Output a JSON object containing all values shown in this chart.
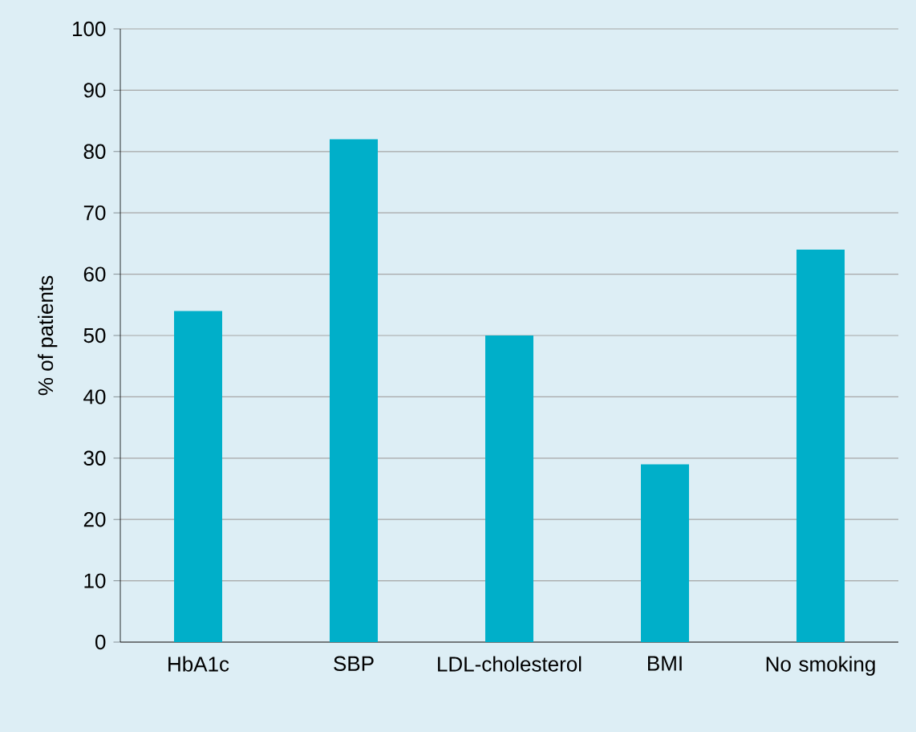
{
  "chart_data": {
    "type": "bar",
    "ylabel": "% of patients",
    "categories": [
      "HbA1c",
      "SBP",
      "LDL-cholesterol",
      "BMI",
      "No smoking"
    ],
    "values": [
      54,
      82,
      50,
      29,
      64
    ],
    "color": "#00afc9",
    "ylim": [
      0,
      100
    ],
    "yticks": [
      0,
      10,
      20,
      30,
      40,
      50,
      60,
      70,
      80,
      90,
      100
    ],
    "grid": "y"
  }
}
